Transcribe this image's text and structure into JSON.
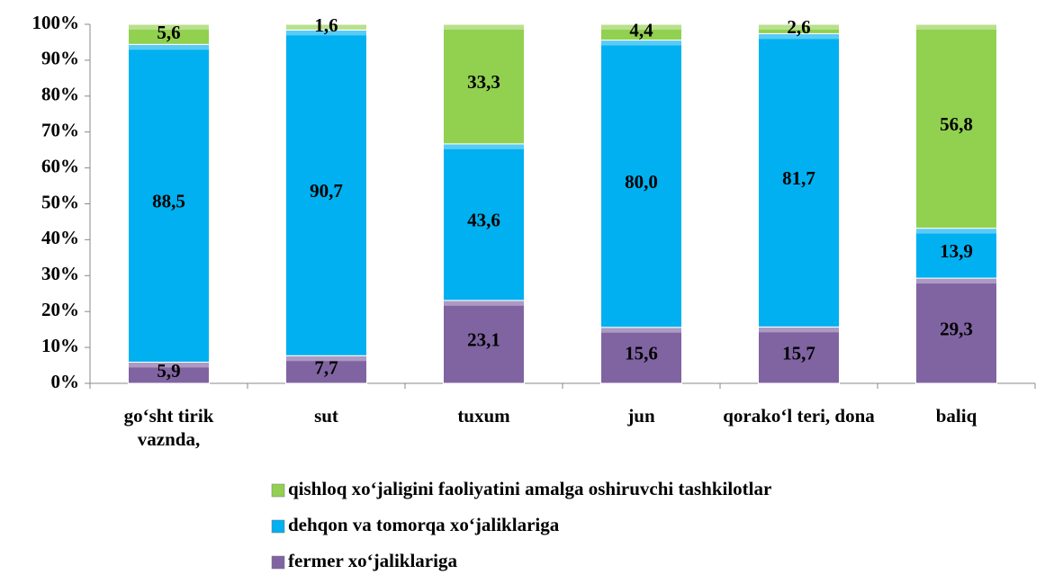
{
  "chart_data": {
    "type": "stacked_bar",
    "categories": [
      "go‘sht tirik vaznda,",
      "sut",
      "tuxum",
      "jun",
      "qorako‘l  teri, dona",
      "baliq"
    ],
    "series": [
      {
        "name": "fermer xo‘jaliklariga",
        "color": "#8064a2",
        "values": [
          5.9,
          7.7,
          23.1,
          15.6,
          15.7,
          29.3
        ],
        "value_labels": [
          "5,9",
          "7,7",
          "23,1",
          "15,6",
          "15,7",
          "29,3"
        ]
      },
      {
        "name": "dehqon va tomorqa xo‘jaliklariga",
        "color": "#00b0f0",
        "values": [
          88.5,
          90.7,
          43.6,
          80.0,
          81.7,
          13.9
        ],
        "value_labels": [
          "88,5",
          "90,7",
          "43,6",
          "80,0",
          "81,7",
          "13,9"
        ]
      },
      {
        "name": "qishloq xo‘jaligini  faoliyatini amalga oshiruvchi tashkilotlar",
        "color": "#92d050",
        "values": [
          5.6,
          1.6,
          33.3,
          4.4,
          2.6,
          56.8
        ],
        "value_labels": [
          "5,6",
          "1,6",
          "33,3",
          "4,4",
          "2,6",
          "56,8"
        ]
      }
    ],
    "ylim": [
      0,
      100
    ],
    "yticks": [
      {
        "value": 0,
        "label": "0%"
      },
      {
        "value": 10,
        "label": "10%"
      },
      {
        "value": 20,
        "label": "20%"
      },
      {
        "value": 30,
        "label": "30%"
      },
      {
        "value": 40,
        "label": "40%"
      },
      {
        "value": 50,
        "label": "50%"
      },
      {
        "value": 60,
        "label": "60%"
      },
      {
        "value": 70,
        "label": "70%"
      },
      {
        "value": 80,
        "label": "80%"
      },
      {
        "value": 90,
        "label": "90%"
      },
      {
        "value": 100,
        "label": "100%"
      }
    ],
    "legend": "bottom"
  }
}
